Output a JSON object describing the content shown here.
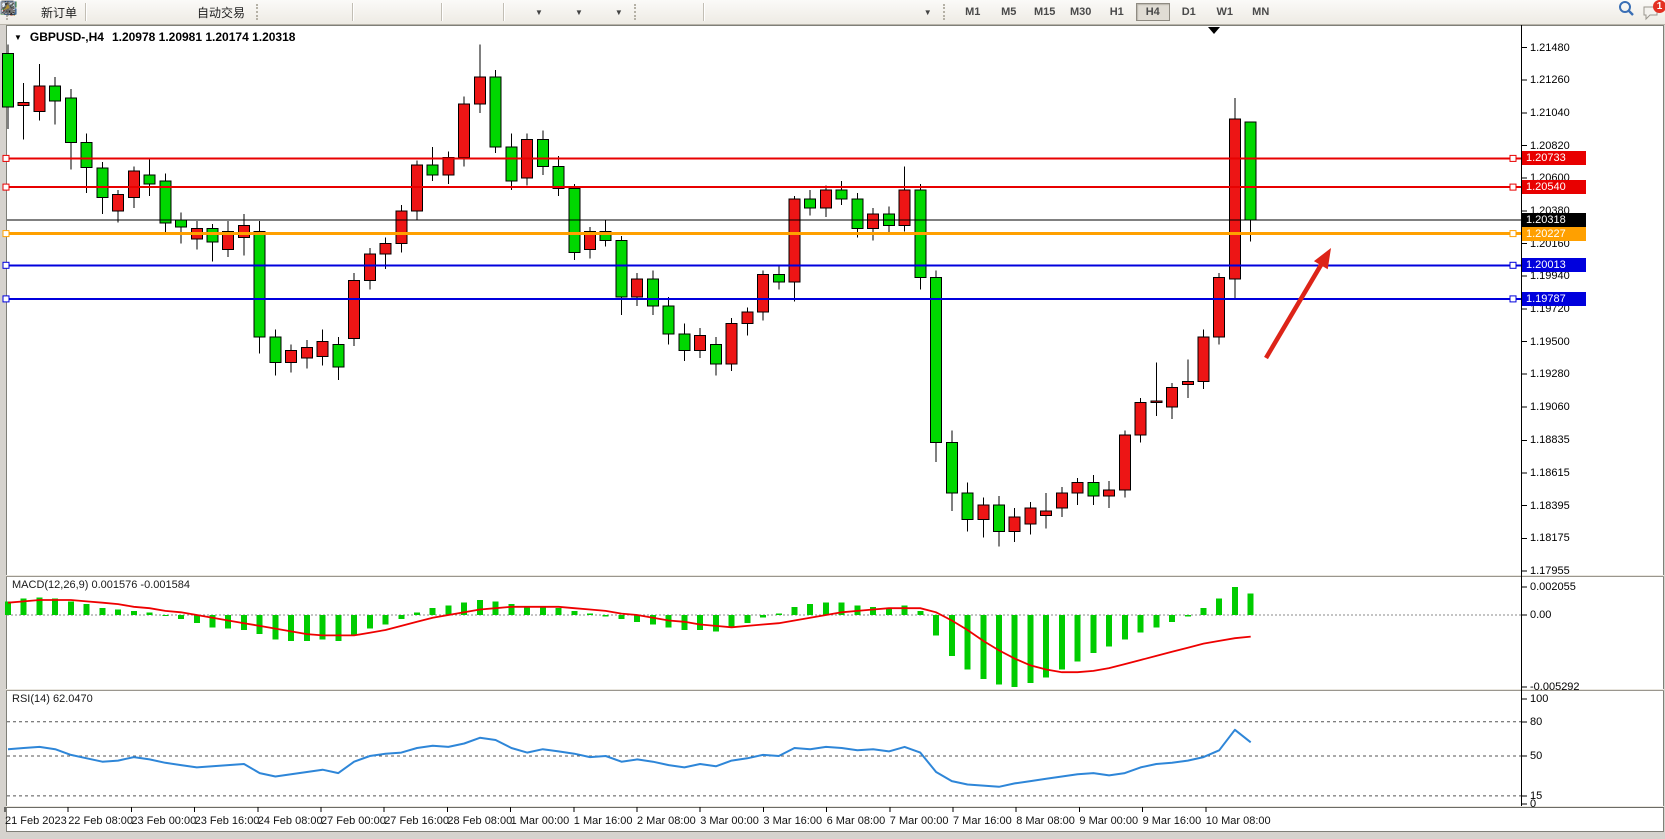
{
  "toolbar": {
    "new_order_label": "新订单",
    "autotrading_label": "自动交易",
    "timeframes": [
      "M1",
      "M5",
      "M15",
      "M30",
      "H1",
      "H4",
      "D1",
      "W1",
      "MN"
    ],
    "active_timeframe": "H4",
    "notification_count": "1"
  },
  "chart_data": {
    "type": "candlestick",
    "symbol_title": "GBPUSD-,H4",
    "ohlc_title": "1.20978 1.20981 1.20174 1.20318",
    "up_color": "#ed1515",
    "down_color": "#00d800",
    "wick_color": "#000000",
    "background": "#ffffff",
    "note_color_convention": "red = bullish, green = bearish",
    "price_axis_ticks": [
      "1.21480",
      "1.21260",
      "1.21040",
      "1.20820",
      "1.20600",
      "1.20380",
      "1.20160",
      "1.19940",
      "1.19720",
      "1.19500",
      "1.19280",
      "1.19060",
      "1.18835",
      "1.18615",
      "1.18395",
      "1.18175",
      "1.17955"
    ],
    "price_axis_range": [
      1.17955,
      1.2148
    ],
    "time_labels": [
      "21 Feb 2023",
      "22 Feb 08:00",
      "23 Feb 00:00",
      "23 Feb 16:00",
      "24 Feb 08:00",
      "27 Feb 00:00",
      "27 Feb 16:00",
      "28 Feb 08:00",
      "1 Mar 00:00",
      "1 Mar 16:00",
      "2 Mar 08:00",
      "3 Mar 00:00",
      "3 Mar 16:00",
      "6 Mar 08:00",
      "7 Mar 00:00",
      "7 Mar 16:00",
      "8 Mar 08:00",
      "9 Mar 00:00",
      "9 Mar 16:00",
      "10 Mar 08:00"
    ],
    "hlines": [
      {
        "price": 1.20733,
        "badge": "1.20733",
        "color": "#e80000",
        "width": 2,
        "handles": true
      },
      {
        "price": 1.2054,
        "badge": "1.20540",
        "color": "#e80000",
        "width": 2,
        "handles": true
      },
      {
        "price": 1.20318,
        "badge": "1.20318",
        "color": "#000000",
        "width": 1,
        "handles": false
      },
      {
        "price": 1.20227,
        "badge": "1.20227",
        "color": "#ffa000",
        "width": 3,
        "handles": true
      },
      {
        "price": 1.20013,
        "badge": "1.20013",
        "color": "#0000dd",
        "width": 2,
        "handles": true
      },
      {
        "price": 1.19787,
        "badge": "1.19787",
        "color": "#0000dd",
        "width": 2,
        "handles": true
      }
    ],
    "arrow": {
      "from": [
        1266,
        358
      ],
      "to": [
        1331,
        248
      ],
      "color": "#dd2418"
    },
    "candles": [
      [
        1.2144,
        1.215,
        1.2093,
        1.2108
      ],
      [
        1.2109,
        1.2124,
        1.2086,
        1.2111
      ],
      [
        1.2105,
        1.2137,
        1.2099,
        1.2122
      ],
      [
        1.2122,
        1.2128,
        1.2096,
        1.2112
      ],
      [
        1.2114,
        1.212,
        1.2066,
        1.2084
      ],
      [
        1.2084,
        1.209,
        1.205,
        1.2067
      ],
      [
        1.2067,
        1.2071,
        1.2036,
        1.2047
      ],
      [
        1.2038,
        1.2052,
        1.203,
        1.2049
      ],
      [
        1.2047,
        1.2068,
        1.204,
        1.2065
      ],
      [
        1.2062,
        1.2073,
        1.2048,
        1.2056
      ],
      [
        1.2058,
        1.2063,
        1.2023,
        1.203
      ],
      [
        1.2032,
        1.2037,
        1.2016,
        1.2027
      ],
      [
        1.2019,
        1.2031,
        1.2012,
        1.2026
      ],
      [
        1.2026,
        1.2029,
        1.2004,
        1.2017
      ],
      [
        1.2012,
        1.2031,
        1.2007,
        1.2024
      ],
      [
        1.202,
        1.2036,
        1.2008,
        1.2028
      ],
      [
        1.2024,
        1.2031,
        1.1942,
        1.1953
      ],
      [
        1.1953,
        1.1958,
        1.1927,
        1.1936
      ],
      [
        1.1936,
        1.1948,
        1.1929,
        1.1944
      ],
      [
        1.1939,
        1.1951,
        1.1932,
        1.1946
      ],
      [
        1.194,
        1.1958,
        1.1934,
        1.195
      ],
      [
        1.1948,
        1.1953,
        1.1924,
        1.1933
      ],
      [
        1.1952,
        1.1996,
        1.1947,
        1.1991
      ],
      [
        1.1991,
        1.2013,
        1.1985,
        1.2009
      ],
      [
        1.2009,
        1.202,
        1.1999,
        1.2016
      ],
      [
        1.2016,
        1.2042,
        1.201,
        1.2038
      ],
      [
        1.2038,
        1.2072,
        1.2032,
        1.2069
      ],
      [
        1.2069,
        1.2081,
        1.2058,
        1.2062
      ],
      [
        1.2062,
        1.2078,
        1.2056,
        1.2074
      ],
      [
        1.2074,
        1.2115,
        1.2068,
        1.211
      ],
      [
        1.211,
        1.215,
        1.2104,
        1.2128
      ],
      [
        1.2128,
        1.2133,
        1.2077,
        1.2081
      ],
      [
        1.2081,
        1.209,
        1.2052,
        1.2058
      ],
      [
        1.206,
        1.209,
        1.2055,
        1.2086
      ],
      [
        1.2086,
        1.2092,
        1.2062,
        1.2068
      ],
      [
        1.2068,
        1.2075,
        1.2048,
        1.2053
      ],
      [
        1.2053,
        1.2056,
        1.2005,
        1.201
      ],
      [
        1.2012,
        1.2027,
        1.2006,
        1.2024
      ],
      [
        1.2024,
        1.2032,
        1.2014,
        1.2018
      ],
      [
        1.2018,
        1.2021,
        1.1968,
        1.198
      ],
      [
        1.198,
        1.1996,
        1.1974,
        1.1992
      ],
      [
        1.1992,
        1.1998,
        1.1968,
        1.1974
      ],
      [
        1.1974,
        1.198,
        1.1948,
        1.1955
      ],
      [
        1.1955,
        1.1962,
        1.1937,
        1.1944
      ],
      [
        1.1944,
        1.1959,
        1.1939,
        1.1954
      ],
      [
        1.1948,
        1.1953,
        1.1927,
        1.1935
      ],
      [
        1.1935,
        1.1966,
        1.193,
        1.1962
      ],
      [
        1.1962,
        1.1973,
        1.1954,
        1.197
      ],
      [
        1.197,
        1.1998,
        1.1964,
        1.1995
      ],
      [
        1.1995,
        1.2002,
        1.1985,
        1.199
      ],
      [
        1.199,
        1.2048,
        1.1977,
        1.2046
      ],
      [
        1.2046,
        1.2052,
        1.2035,
        1.204
      ],
      [
        1.204,
        1.2055,
        1.2034,
        1.2052
      ],
      [
        1.2052,
        1.2058,
        1.2042,
        1.2046
      ],
      [
        1.2046,
        1.205,
        1.202,
        1.2026
      ],
      [
        1.2026,
        1.204,
        1.2018,
        1.2036
      ],
      [
        1.2036,
        1.2041,
        1.2022,
        1.2028
      ],
      [
        1.2028,
        1.2068,
        1.2024,
        1.2052
      ],
      [
        1.2052,
        1.2056,
        1.1985,
        1.1993
      ],
      [
        1.1993,
        1.1998,
        1.1869,
        1.1882
      ],
      [
        1.1882,
        1.189,
        1.1836,
        1.1848
      ],
      [
        1.1848,
        1.1855,
        1.1822,
        1.183
      ],
      [
        1.183,
        1.1845,
        1.1818,
        1.184
      ],
      [
        1.184,
        1.1846,
        1.1812,
        1.1822
      ],
      [
        1.1822,
        1.1838,
        1.1815,
        1.1832
      ],
      [
        1.1827,
        1.1842,
        1.182,
        1.1838
      ],
      [
        1.1833,
        1.1848,
        1.1824,
        1.1836
      ],
      [
        1.1838,
        1.1852,
        1.1832,
        1.1848
      ],
      [
        1.1848,
        1.1858,
        1.184,
        1.1855
      ],
      [
        1.1855,
        1.186,
        1.184,
        1.1846
      ],
      [
        1.1846,
        1.1856,
        1.1838,
        1.185
      ],
      [
        1.185,
        1.189,
        1.1845,
        1.1887
      ],
      [
        1.1887,
        1.1912,
        1.1882,
        1.1909
      ],
      [
        1.1909,
        1.1936,
        1.19,
        1.191
      ],
      [
        1.1906,
        1.1922,
        1.1898,
        1.1919
      ],
      [
        1.1921,
        1.1938,
        1.1912,
        1.1923
      ],
      [
        1.1923,
        1.1958,
        1.1918,
        1.1953
      ],
      [
        1.1953,
        1.1996,
        1.1948,
        1.1993
      ],
      [
        1.1992,
        1.2114,
        1.1978,
        1.21
      ],
      [
        1.20978,
        1.20981,
        1.20174,
        1.20318
      ]
    ],
    "macd": {
      "label": "MACD(12,26,9) 0.001576 -0.001584",
      "main_value": 0.001576,
      "signal_value": -0.001584,
      "scale_labels": [
        "0.002055",
        "0.00",
        "-0.005292"
      ],
      "hist_color": "#00cc00",
      "signal_color": "#ee0000",
      "histogram": [
        0.001,
        0.0012,
        0.0013,
        0.0012,
        0.001,
        0.0008,
        0.0005,
        0.0004,
        0.0003,
        0.0002,
        0.0,
        -0.0003,
        -0.0006,
        -0.0009,
        -0.001,
        -0.0011,
        -0.0014,
        -0.0018,
        -0.0019,
        -0.0019,
        -0.0018,
        -0.0019,
        -0.0015,
        -0.001,
        -0.0007,
        -0.0003,
        0.0002,
        0.0005,
        0.0007,
        0.0009,
        0.0011,
        0.001,
        0.0008,
        0.0006,
        0.0006,
        0.0005,
        0.0003,
        0.0001,
        -0.0001,
        -0.0003,
        -0.0005,
        -0.0007,
        -0.0009,
        -0.0011,
        -0.0011,
        -0.0012,
        -0.0009,
        -0.0006,
        -0.0002,
        0.0001,
        0.0006,
        0.0008,
        0.0009,
        0.0009,
        0.0007,
        0.0006,
        0.0005,
        0.0007,
        0.0003,
        -0.0015,
        -0.003,
        -0.004,
        -0.0047,
        -0.0051,
        -0.0053,
        -0.005,
        -0.0046,
        -0.004,
        -0.0034,
        -0.0028,
        -0.0023,
        -0.0018,
        -0.0013,
        -0.0009,
        -0.0005,
        -0.0001,
        0.0005,
        0.0012,
        0.002055,
        0.001576
      ],
      "signal": [
        0.0009,
        0.001,
        0.0011,
        0.0011,
        0.0011,
        0.001,
        0.0009,
        0.0008,
        0.0006,
        0.0005,
        0.0003,
        0.0002,
        0.0,
        -0.0002,
        -0.0004,
        -0.0006,
        -0.0008,
        -0.001,
        -0.0012,
        -0.0014,
        -0.0015,
        -0.0015,
        -0.0015,
        -0.0013,
        -0.0011,
        -0.0008,
        -0.0005,
        -0.0002,
        0.0,
        0.0002,
        0.0004,
        0.0005,
        0.0006,
        0.0006,
        0.0006,
        0.0006,
        0.0005,
        0.0004,
        0.0003,
        0.0001,
        0.0,
        -0.0002,
        -0.0004,
        -0.0005,
        -0.0007,
        -0.0008,
        -0.0009,
        -0.0008,
        -0.0007,
        -0.0006,
        -0.0004,
        -0.0002,
        0.0,
        0.0002,
        0.0003,
        0.0004,
        0.0005,
        0.0005,
        0.0005,
        0.0002,
        -0.0004,
        -0.0011,
        -0.0019,
        -0.0026,
        -0.0032,
        -0.0037,
        -0.004,
        -0.0042,
        -0.0042,
        -0.0041,
        -0.0039,
        -0.0036,
        -0.0033,
        -0.003,
        -0.0027,
        -0.0024,
        -0.0021,
        -0.0019,
        -0.0017,
        -0.001584
      ]
    },
    "rsi": {
      "label": "RSI(14) 62.0470",
      "value": 62.047,
      "levels": [
        80,
        50,
        15
      ],
      "scale_labels": [
        "100",
        "80",
        "50",
        "15",
        "0"
      ],
      "color": "#2e86d8",
      "values": [
        56,
        57,
        58,
        56,
        51,
        48,
        45,
        46,
        49,
        47,
        44,
        42,
        40,
        41,
        42,
        43,
        35,
        32,
        34,
        36,
        38,
        35,
        45,
        50,
        52,
        53,
        57,
        59,
        58,
        61,
        66,
        64,
        57,
        53,
        56,
        54,
        52,
        49,
        50,
        45,
        47,
        45,
        42,
        40,
        43,
        41,
        46,
        48,
        51,
        50,
        57,
        56,
        58,
        57,
        55,
        56,
        54,
        58,
        53,
        36,
        28,
        25,
        24,
        23,
        26,
        28,
        30,
        32,
        34,
        35,
        33,
        35,
        40,
        43,
        44,
        46,
        49,
        55,
        73,
        62.05
      ]
    }
  }
}
